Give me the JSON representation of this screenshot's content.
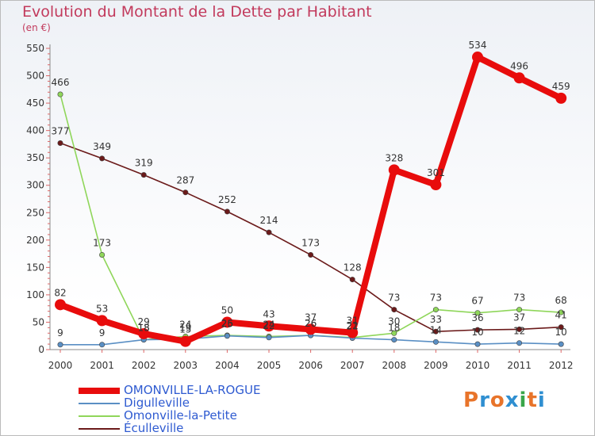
{
  "title": "Evolution du Montant de la Dette par Habitant",
  "unit_label": "(en €)",
  "logo": {
    "text": "Proxiti",
    "colors": [
      "#e8742a",
      "#2f8fd1",
      "#e8742a",
      "#2f8fd1",
      "#3aa64a",
      "#e8742a",
      "#2f8fd1"
    ]
  },
  "chart_data": {
    "type": "line",
    "x": [
      "2000",
      "2001",
      "2002",
      "2003",
      "2004",
      "2005",
      "2006",
      "2007",
      "2008",
      "2009",
      "2010",
      "2011",
      "2012"
    ],
    "ylim": [
      0,
      550
    ],
    "yticks": [
      0,
      50,
      100,
      150,
      200,
      250,
      300,
      350,
      400,
      450,
      500,
      550
    ],
    "grid": false,
    "legend_position": "bottom-left",
    "series": [
      {
        "name": "OMONVILLE-LA-ROGUE",
        "color": "#e80c0c",
        "values": [
          82,
          53,
          29,
          15,
          50,
          43,
          37,
          31,
          328,
          301,
          534,
          496,
          459
        ]
      },
      {
        "name": "Digulleville",
        "color": "#5a8fc4",
        "values": [
          9,
          9,
          18,
          19,
          25,
          22,
          26,
          21,
          18,
          14,
          10,
          12,
          10
        ]
      },
      {
        "name": "Omonville-la-Petite",
        "color": "#8fd65a",
        "values": [
          466,
          173,
          18,
          24,
          26,
          24,
          26,
          22,
          30,
          73,
          67,
          73,
          68
        ]
      },
      {
        "name": "Éculleville",
        "color": "#6b1a1a",
        "values": [
          377,
          349,
          319,
          287,
          252,
          214,
          173,
          128,
          73,
          33,
          36,
          37,
          41
        ]
      }
    ]
  }
}
